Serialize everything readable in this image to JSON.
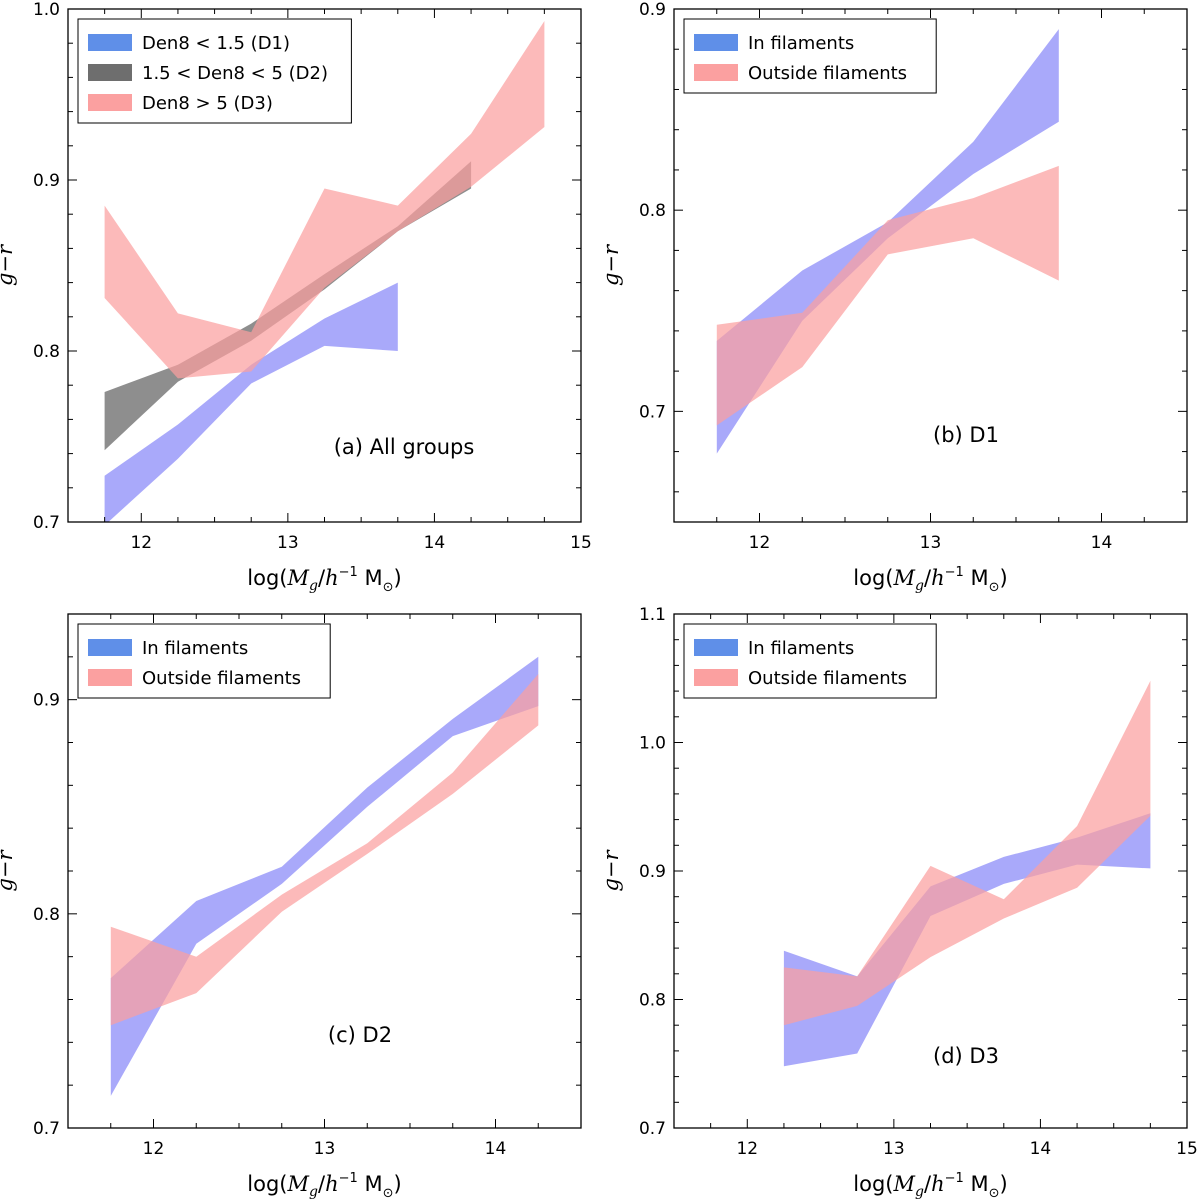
{
  "colors": {
    "blue_band": "#6f6ff7",
    "blue_legend": "#5f8fe8",
    "pink_band": "#fba0a0",
    "gray_band": "#6e6e6e",
    "purple_overlap": "#8a52b8"
  },
  "chart_data": [
    {
      "id": "a",
      "type": "area",
      "annotation": "(a) All groups",
      "xlabel": "log(M_g/h^-1 M_sun)",
      "ylabel": "g-r",
      "xlim": [
        11.5,
        15.0
      ],
      "ylim": [
        0.7,
        1.0
      ],
      "xticks": [
        12,
        13,
        14,
        15
      ],
      "xtick_labels": [
        "12",
        "13",
        "14",
        "15"
      ],
      "yticks": [
        0.7,
        0.8,
        0.9,
        1.0
      ],
      "ytick_labels": [
        "0.7",
        "0.8",
        "0.9",
        "1.0"
      ],
      "legend": "top-left",
      "series": [
        {
          "name": "Den8 < 1.5 (D1)",
          "color": "blue",
          "x": [
            11.75,
            12.25,
            12.75,
            13.25,
            13.75
          ],
          "upper": [
            0.727,
            0.757,
            0.792,
            0.819,
            0.84
          ],
          "lower": [
            0.698,
            0.737,
            0.781,
            0.803,
            0.8
          ]
        },
        {
          "name": "1.5 < Den8 < 5 (D2)",
          "color": "gray",
          "x": [
            11.75,
            12.25,
            12.75,
            13.25,
            13.75,
            14.25
          ],
          "upper": [
            0.776,
            0.792,
            0.816,
            0.845,
            0.873,
            0.911
          ],
          "lower": [
            0.742,
            0.782,
            0.806,
            0.836,
            0.87,
            0.895
          ]
        },
        {
          "name": "Den8 > 5 (D3)",
          "color": "pink",
          "x": [
            11.75,
            12.25,
            12.75,
            13.25,
            13.75,
            14.25,
            14.75
          ],
          "upper": [
            0.885,
            0.822,
            0.811,
            0.895,
            0.885,
            0.927,
            0.993
          ],
          "lower": [
            0.831,
            0.784,
            0.788,
            0.837,
            0.87,
            0.896,
            0.931
          ]
        }
      ]
    },
    {
      "id": "b",
      "type": "area",
      "annotation": "(b) D1",
      "xlabel": "log(M_g/h^-1 M_sun)",
      "ylabel": "g-r",
      "xlim": [
        11.5,
        14.5
      ],
      "ylim": [
        0.645,
        0.9
      ],
      "xticks": [
        12,
        13,
        14
      ],
      "xtick_labels": [
        "12",
        "13",
        "14"
      ],
      "yticks": [
        0.7,
        0.8,
        0.9
      ],
      "ytick_labels": [
        "0.7",
        "0.8",
        "0.9"
      ],
      "legend": "top-left",
      "series": [
        {
          "name": "In filaments",
          "color": "blue",
          "x": [
            11.75,
            12.25,
            12.75,
            13.25,
            13.75
          ],
          "upper": [
            0.735,
            0.77,
            0.794,
            0.834,
            0.89
          ],
          "lower": [
            0.679,
            0.745,
            0.786,
            0.818,
            0.844
          ]
        },
        {
          "name": "Outside filaments",
          "color": "pink",
          "x": [
            11.75,
            12.25,
            12.75,
            13.25,
            13.75
          ],
          "upper": [
            0.743,
            0.749,
            0.795,
            0.806,
            0.822
          ],
          "lower": [
            0.693,
            0.722,
            0.778,
            0.786,
            0.765
          ]
        }
      ]
    },
    {
      "id": "c",
      "type": "area",
      "annotation": "(c) D2",
      "xlabel": "log(M_g/h^-1 M_sun)",
      "ylabel": "g-r",
      "xlim": [
        11.5,
        14.5
      ],
      "ylim": [
        0.7,
        0.94
      ],
      "xticks": [
        12,
        13,
        14
      ],
      "xtick_labels": [
        "12",
        "13",
        "14"
      ],
      "yticks": [
        0.7,
        0.8,
        0.9
      ],
      "ytick_labels": [
        "0.7",
        "0.8",
        "0.9"
      ],
      "legend": "top-left",
      "series": [
        {
          "name": "In filaments",
          "color": "blue",
          "x": [
            11.75,
            12.25,
            12.75,
            13.25,
            13.75,
            14.25
          ],
          "upper": [
            0.77,
            0.806,
            0.822,
            0.859,
            0.891,
            0.92
          ],
          "lower": [
            0.715,
            0.786,
            0.814,
            0.85,
            0.883,
            0.897
          ]
        },
        {
          "name": "Outside filaments",
          "color": "pink",
          "x": [
            11.75,
            12.25,
            12.75,
            13.25,
            13.75,
            14.25
          ],
          "upper": [
            0.794,
            0.78,
            0.809,
            0.833,
            0.866,
            0.912
          ],
          "lower": [
            0.748,
            0.763,
            0.801,
            0.828,
            0.856,
            0.888
          ]
        }
      ]
    },
    {
      "id": "d",
      "type": "area",
      "annotation": "(d) D3",
      "xlabel": "log(M_g/h^-1 M_sun)",
      "ylabel": "g-r",
      "xlim": [
        11.5,
        15.0
      ],
      "ylim": [
        0.7,
        1.1
      ],
      "xticks": [
        12,
        13,
        14,
        15
      ],
      "xtick_labels": [
        "12",
        "13",
        "14",
        "15"
      ],
      "yticks": [
        0.7,
        0.8,
        0.9,
        1.0,
        1.1
      ],
      "ytick_labels": [
        "0.7",
        "0.8",
        "0.9",
        "1.0",
        "1.1"
      ],
      "legend": "top-left",
      "series": [
        {
          "name": "In filaments",
          "color": "blue",
          "x": [
            12.25,
            12.75,
            13.25,
            13.75,
            14.25,
            14.75
          ],
          "upper": [
            0.838,
            0.818,
            0.888,
            0.911,
            0.926,
            0.945
          ],
          "lower": [
            0.748,
            0.758,
            0.865,
            0.89,
            0.905,
            0.902
          ]
        },
        {
          "name": "Outside filaments",
          "color": "pink",
          "x": [
            12.25,
            12.75,
            13.25,
            13.75,
            14.25,
            14.75
          ],
          "upper": [
            0.825,
            0.818,
            0.904,
            0.878,
            0.935,
            1.048
          ],
          "lower": [
            0.78,
            0.795,
            0.833,
            0.863,
            0.887,
            0.943
          ]
        }
      ]
    }
  ]
}
